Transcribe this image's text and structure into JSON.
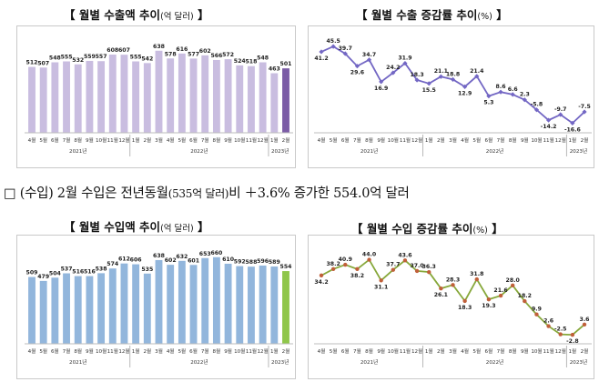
{
  "panels": {
    "export_amount": {
      "title_main": "【 월별 수출액 추이",
      "title_unit": "(억 달러)",
      "title_end": " 】"
    },
    "export_growth": {
      "title_main": "【 월별 수출 증감률 추이",
      "title_unit": "(%)",
      "title_end": " 】"
    },
    "import_amount": {
      "title_main": "【 월별 수입액 추이",
      "title_unit": "(억 달러)",
      "title_end": " 】"
    },
    "import_growth": {
      "title_main": "【 월별 수입 증감률 추이",
      "title_unit": "(%)",
      "title_end": " 】"
    }
  },
  "summary": {
    "prefix": "□ (수입) 2월 수입은 전년동월",
    "unit_note": "(535억 달러)",
    "suffix": "비 ＋3.6% 증가한 554.0억 달러"
  },
  "colors": {
    "export_bar": "#c9bde0",
    "export_bar_last": "#7b5ca6",
    "export_line": "#7367c4",
    "import_bar": "#92b6dc",
    "import_bar_last": "#8fc64a",
    "import_line": "#87a83b",
    "import_marker": "#c0603a"
  },
  "chart_data": [
    {
      "type": "bar",
      "categories": [
        "4월",
        "5월",
        "6월",
        "7월",
        "8월",
        "9월",
        "10월",
        "11월",
        "12월",
        "1월",
        "2월",
        "3월",
        "4월",
        "5월",
        "6월",
        "7월",
        "8월",
        "9월",
        "10월",
        "11월",
        "12월",
        "1월",
        "2월"
      ],
      "values": [
        512,
        507,
        548,
        555,
        532,
        559,
        557,
        608,
        607,
        555,
        542,
        638,
        578,
        616,
        577,
        602,
        566,
        572,
        524,
        518,
        548,
        463,
        501
      ],
      "year_labels": [
        "2021년",
        "2022년",
        "2023년"
      ],
      "ylim": [
        0,
        700
      ]
    },
    {
      "type": "line",
      "categories": [
        "4월",
        "5월",
        "6월",
        "7월",
        "8월",
        "9월",
        "10월",
        "11월",
        "12월",
        "1월",
        "2월",
        "3월",
        "4월",
        "5월",
        "6월",
        "7월",
        "8월",
        "9월",
        "10월",
        "11월",
        "12월",
        "1월",
        "2월"
      ],
      "values": [
        41.2,
        45.5,
        39.7,
        29.6,
        34.7,
        16.9,
        24.2,
        31.9,
        18.3,
        15.5,
        21.1,
        18.8,
        12.9,
        21.4,
        5.3,
        8.6,
        6.6,
        2.3,
        -5.8,
        -14.2,
        -9.7,
        -16.6,
        -7.5
      ],
      "year_labels": [
        "2021년",
        "2022년",
        "2023년"
      ],
      "ylim": [
        -20,
        50
      ]
    },
    {
      "type": "bar",
      "categories": [
        "4월",
        "5월",
        "6월",
        "7월",
        "8월",
        "9월",
        "10월",
        "11월",
        "12월",
        "1월",
        "2월",
        "3월",
        "4월",
        "5월",
        "6월",
        "7월",
        "8월",
        "9월",
        "10월",
        "11월",
        "12월",
        "1월",
        "2월"
      ],
      "values": [
        509,
        479,
        504,
        537,
        516,
        516,
        538,
        574,
        612,
        606,
        535,
        638,
        602,
        632,
        601,
        653,
        660,
        610,
        592,
        588,
        596,
        589,
        554
      ],
      "year_labels": [
        "2021년",
        "2022년",
        "2023년"
      ],
      "ylim": [
        0,
        700
      ]
    },
    {
      "type": "line",
      "categories": [
        "4월",
        "5월",
        "6월",
        "7월",
        "8월",
        "9월",
        "10월",
        "11월",
        "12월",
        "1월",
        "2월",
        "3월",
        "4월",
        "5월",
        "6월",
        "7월",
        "8월",
        "9월",
        "10월",
        "11월",
        "12월",
        "1월",
        "2월"
      ],
      "values": [
        34.2,
        38.2,
        40.9,
        38.2,
        44.0,
        31.1,
        37.7,
        43.6,
        37.0,
        36.3,
        26.1,
        28.3,
        18.3,
        31.8,
        19.3,
        21.6,
        28.0,
        18.2,
        9.9,
        2.6,
        -2.5,
        -2.8,
        3.6
      ],
      "year_labels": [
        "2021년",
        "2022년",
        "2023년"
      ],
      "ylim": [
        -5,
        50
      ]
    }
  ]
}
